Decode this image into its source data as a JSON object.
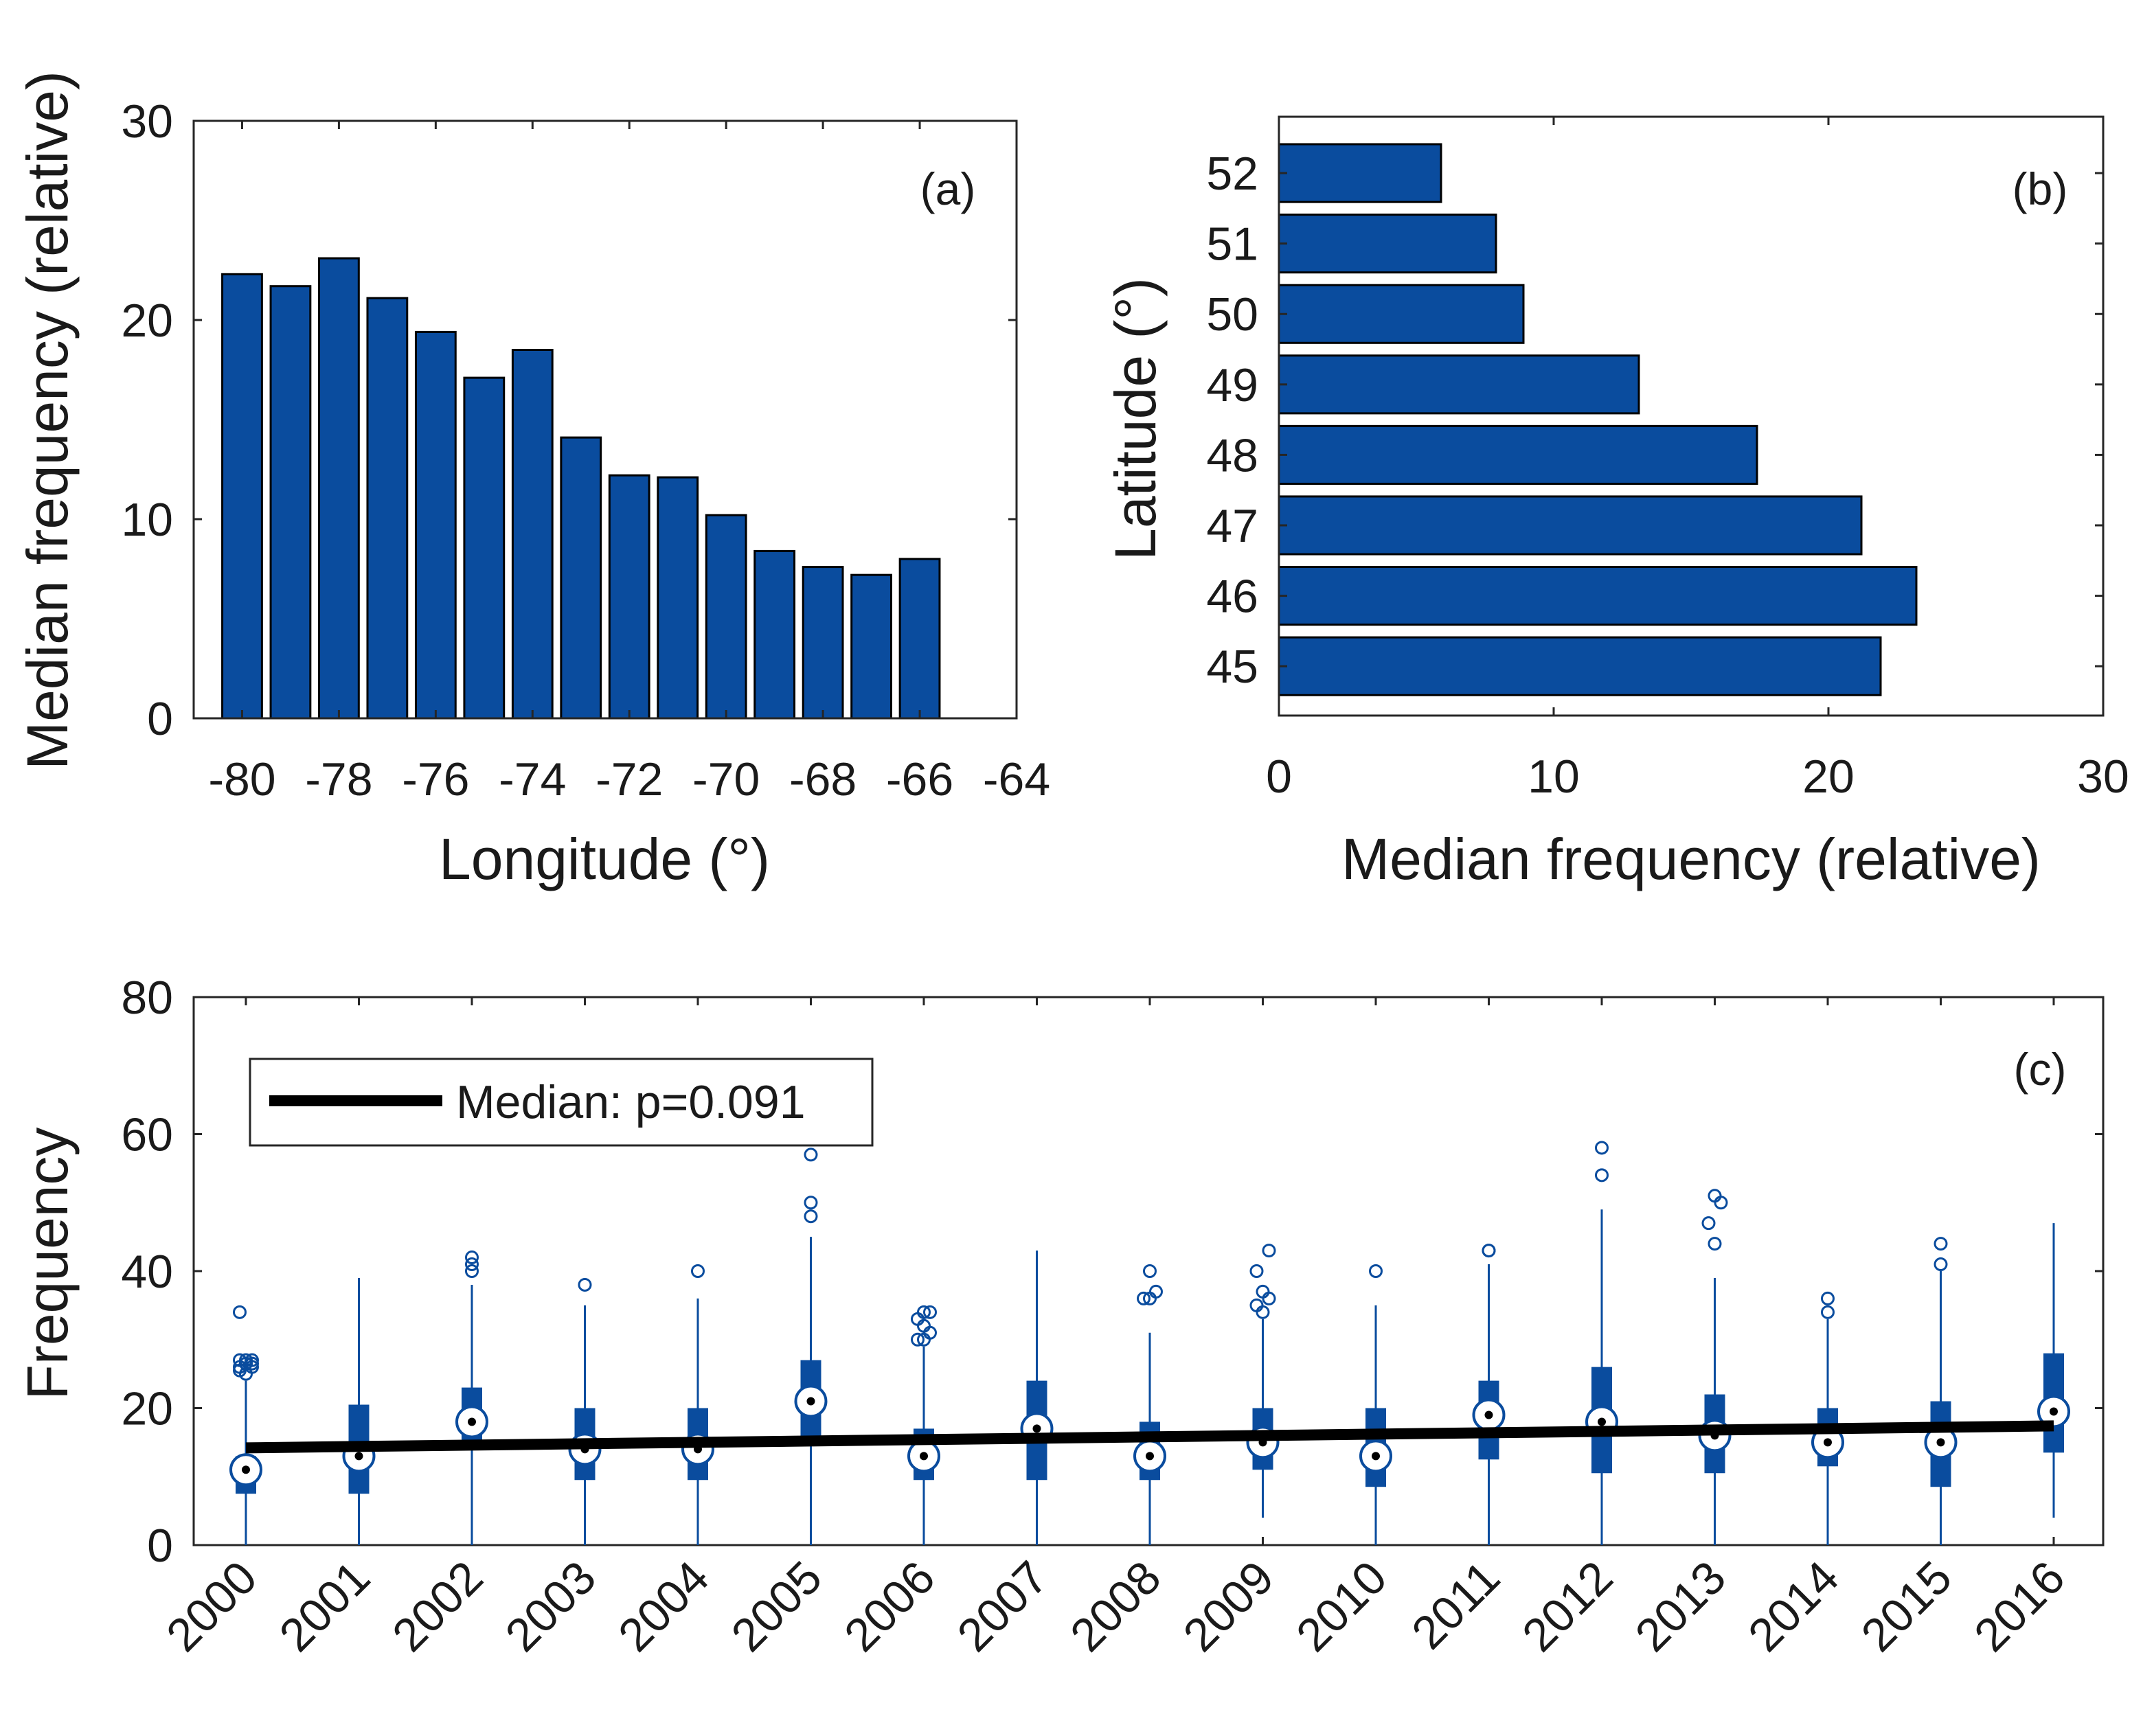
{
  "colors": {
    "bar_fill": "#0a4c9e",
    "bar_edge": "#000000",
    "box": "#0a4c9e",
    "trend": "#000000",
    "axis": "#262626",
    "text": "#1a1a1a"
  },
  "chart_data": [
    {
      "id": "a",
      "type": "bar",
      "panel_label": "(a)",
      "xlabel": "Longitude (°)",
      "ylabel": "Median frequency (relative)",
      "xlim": [
        -81,
        -64
      ],
      "ylim": [
        0,
        30
      ],
      "xticks": [
        -80,
        -78,
        -76,
        -74,
        -72,
        -70,
        -68,
        -66,
        -64
      ],
      "xtick_labels": [
        "-80",
        "-78",
        "-76",
        "-74",
        "-72",
        "-70",
        "-68",
        "-66",
        "-64"
      ],
      "yticks": [
        0,
        10,
        20,
        30
      ],
      "ytick_labels": [
        "0",
        "10",
        "20",
        "30"
      ],
      "x": [
        -80,
        -79,
        -78,
        -77,
        -76,
        -75,
        -74,
        -73,
        -72,
        -71,
        -70,
        -69,
        -68,
        -67,
        -66
      ],
      "values": [
        22.3,
        21.7,
        23.1,
        21.1,
        19.4,
        17.1,
        18.5,
        14.1,
        12.2,
        12.1,
        10.2,
        8.4,
        7.6,
        7.2,
        8.0
      ]
    },
    {
      "id": "b",
      "type": "barh",
      "panel_label": "(b)",
      "xlabel": "Median frequency (relative)",
      "ylabel": "Latitude (°)",
      "xlim": [
        0,
        30
      ],
      "ylim": [
        44.3,
        52.8
      ],
      "xticks": [
        0,
        10,
        20,
        30
      ],
      "xtick_labels": [
        "0",
        "10",
        "20",
        "30"
      ],
      "categories": [
        "45",
        "46",
        "47",
        "48",
        "49",
        "50",
        "51",
        "52"
      ],
      "y": [
        45,
        46,
        47,
        48,
        49,
        50,
        51,
        52
      ],
      "values": [
        21.9,
        23.2,
        21.2,
        17.4,
        13.1,
        8.9,
        7.9,
        5.9
      ]
    },
    {
      "id": "c",
      "type": "boxplot",
      "panel_label": "(c)",
      "xlabel": "",
      "ylabel": "Frequency",
      "ylim": [
        0,
        80
      ],
      "yticks": [
        0,
        20,
        40,
        60,
        80
      ],
      "ytick_labels": [
        "0",
        "20",
        "40",
        "60",
        "80"
      ],
      "categories": [
        "2000",
        "2001",
        "2002",
        "2003",
        "2004",
        "2005",
        "2006",
        "2007",
        "2008",
        "2009",
        "2010",
        "2011",
        "2012",
        "2013",
        "2014",
        "2015",
        "2016"
      ],
      "boxes": [
        {
          "median": 11,
          "q1": 7.5,
          "q3": 13,
          "whisker_low": 0,
          "whisker_high": 24,
          "outliers": [
            25,
            25.5,
            26,
            26.5,
            27,
            27,
            26.5,
            26,
            26.5,
            27,
            34
          ]
        },
        {
          "median": 13,
          "q1": 7.5,
          "q3": 20.5,
          "whisker_low": 0,
          "whisker_high": 39,
          "outliers": []
        },
        {
          "median": 18,
          "q1": 14,
          "q3": 23,
          "whisker_low": 0,
          "whisker_high": 38,
          "outliers": [
            40,
            41,
            42
          ]
        },
        {
          "median": 14,
          "q1": 9.5,
          "q3": 20,
          "whisker_low": 0,
          "whisker_high": 35,
          "outliers": [
            38
          ]
        },
        {
          "median": 14,
          "q1": 9.5,
          "q3": 20,
          "whisker_low": 0,
          "whisker_high": 36,
          "outliers": [
            40
          ]
        },
        {
          "median": 21,
          "q1": 15,
          "q3": 27,
          "whisker_low": 0,
          "whisker_high": 45,
          "outliers": [
            48,
            50,
            57
          ]
        },
        {
          "median": 13,
          "q1": 9.5,
          "q3": 17,
          "whisker_low": 0,
          "whisker_high": 29,
          "outliers": [
            30,
            30,
            31,
            32,
            33,
            34,
            34
          ]
        },
        {
          "median": 17,
          "q1": 9.5,
          "q3": 24,
          "whisker_low": 0,
          "whisker_high": 43,
          "outliers": []
        },
        {
          "median": 13,
          "q1": 9.5,
          "q3": 18,
          "whisker_low": 0,
          "whisker_high": 31,
          "outliers": [
            36,
            36,
            37,
            40
          ]
        },
        {
          "median": 15,
          "q1": 11,
          "q3": 20,
          "whisker_low": 4,
          "whisker_high": 33,
          "outliers": [
            34,
            35,
            36,
            37,
            40,
            43
          ]
        },
        {
          "median": 13,
          "q1": 8.5,
          "q3": 20,
          "whisker_low": 0,
          "whisker_high": 35,
          "outliers": [
            40
          ]
        },
        {
          "median": 19,
          "q1": 12.5,
          "q3": 24,
          "whisker_low": 0,
          "whisker_high": 41,
          "outliers": [
            43,
            43
          ]
        },
        {
          "median": 18,
          "q1": 10.5,
          "q3": 26,
          "whisker_low": 0,
          "whisker_high": 49,
          "outliers": [
            54,
            58
          ]
        },
        {
          "median": 16,
          "q1": 10.5,
          "q3": 22,
          "whisker_low": 0,
          "whisker_high": 39,
          "outliers": [
            44,
            47,
            50,
            51
          ]
        },
        {
          "median": 15,
          "q1": 11.5,
          "q3": 20,
          "whisker_low": 0,
          "whisker_high": 33,
          "outliers": [
            34,
            36
          ]
        },
        {
          "median": 15,
          "q1": 8.5,
          "q3": 21,
          "whisker_low": 0,
          "whisker_high": 40,
          "outliers": [
            41,
            44
          ]
        },
        {
          "median": 19.5,
          "q1": 13.5,
          "q3": 28,
          "whisker_low": 4,
          "whisker_high": 47,
          "outliers": []
        }
      ],
      "trend": {
        "label": "Median: p=0.091",
        "start": 14.2,
        "end": 17.4
      }
    }
  ]
}
